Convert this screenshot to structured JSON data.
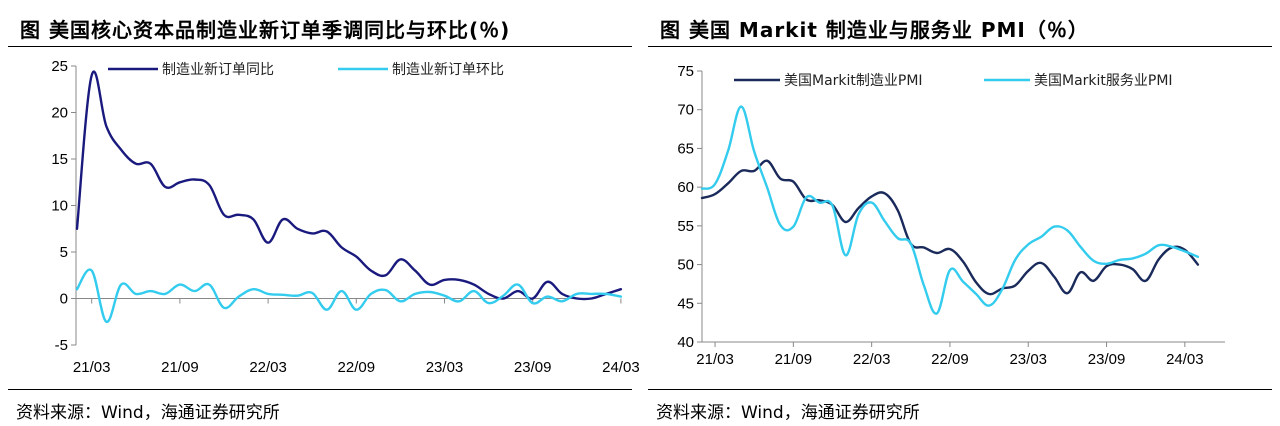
{
  "left": {
    "title": "图   美国核心资本品制造业新订单季调同比与环比(％)",
    "source": "资料来源：Wind，海通证券研究所"
  },
  "right": {
    "title": "图   美国 Markit 制造业与服务业 PMI（％）",
    "source": "资料来源：Wind，海通证券研究所"
  },
  "chart_data": [
    {
      "type": "line",
      "title": "美国核心资本品制造业新订单季调同比与环比(％)",
      "ylim": [
        -5,
        25
      ],
      "yticks": [
        -5,
        0,
        5,
        10,
        15,
        20,
        25
      ],
      "xticks": [
        "21/03",
        "21/09",
        "22/03",
        "22/09",
        "23/03",
        "23/09",
        "24/03"
      ],
      "x": [
        "21/02",
        "21/03",
        "21/04",
        "21/05",
        "21/06",
        "21/07",
        "21/08",
        "21/09",
        "21/10",
        "21/11",
        "21/12",
        "22/01",
        "22/02",
        "22/03",
        "22/04",
        "22/05",
        "22/06",
        "22/07",
        "22/08",
        "22/09",
        "22/10",
        "22/11",
        "22/12",
        "23/01",
        "23/02",
        "23/03",
        "23/04",
        "23/05",
        "23/06",
        "23/07",
        "23/08",
        "23/09",
        "23/10",
        "23/11",
        "23/12",
        "24/01",
        "24/02",
        "24/03"
      ],
      "legend_position": "top",
      "grid": false,
      "series": [
        {
          "name": "制造业新订单同比",
          "color": "#1a1a7e",
          "values": [
            7.5,
            24.0,
            18.5,
            16.0,
            14.5,
            14.5,
            12.0,
            12.5,
            12.8,
            12.2,
            9.0,
            9.0,
            8.5,
            6.0,
            8.5,
            7.5,
            7.0,
            7.2,
            5.5,
            4.5,
            3.0,
            2.5,
            4.2,
            3.0,
            1.5,
            2.0,
            2.0,
            1.5,
            0.5,
            0.0,
            0.8,
            0.0,
            1.8,
            0.5,
            0.0,
            0.0,
            0.5,
            1.0
          ]
        },
        {
          "name": "制造业新订单环比",
          "color": "#33ccee",
          "values": [
            1.0,
            3.0,
            -2.5,
            1.5,
            0.5,
            0.8,
            0.5,
            1.5,
            0.8,
            1.5,
            -1.0,
            0.2,
            1.0,
            0.5,
            0.4,
            0.3,
            0.6,
            -1.2,
            0.8,
            -1.2,
            0.5,
            0.9,
            -0.3,
            0.5,
            0.7,
            0.3,
            -0.3,
            0.8,
            -0.5,
            0.3,
            1.5,
            -0.5,
            0.2,
            -0.3,
            0.5,
            0.5,
            0.5,
            0.2
          ]
        }
      ]
    },
    {
      "type": "line",
      "title": "美国 Markit 制造业与服务业 PMI（％）",
      "ylim": [
        40,
        75
      ],
      "yticks": [
        40,
        45,
        50,
        55,
        60,
        65,
        70,
        75
      ],
      "xticks": [
        "21/03",
        "21/09",
        "22/03",
        "22/09",
        "23/03",
        "23/09",
        "24/03"
      ],
      "x": [
        "21/02",
        "21/03",
        "21/04",
        "21/05",
        "21/06",
        "21/07",
        "21/08",
        "21/09",
        "21/10",
        "21/11",
        "21/12",
        "22/01",
        "22/02",
        "22/03",
        "22/04",
        "22/05",
        "22/06",
        "22/07",
        "22/08",
        "22/09",
        "22/10",
        "22/11",
        "22/12",
        "23/01",
        "23/02",
        "23/03",
        "23/04",
        "23/05",
        "23/06",
        "23/07",
        "23/08",
        "23/09",
        "23/10",
        "23/11",
        "23/12",
        "24/01",
        "24/02",
        "24/03",
        "24/04"
      ],
      "legend_position": "top",
      "grid": false,
      "series": [
        {
          "name": "美国Markit制造业PMI",
          "color": "#1a2a5a",
          "values": [
            58.6,
            59.1,
            60.5,
            62.1,
            62.1,
            63.4,
            61.1,
            60.7,
            58.4,
            58.3,
            57.7,
            55.5,
            57.3,
            58.8,
            59.2,
            57.0,
            52.7,
            52.2,
            51.5,
            52.0,
            50.4,
            47.7,
            46.2,
            46.9,
            47.3,
            49.2,
            50.2,
            48.4,
            46.3,
            49.0,
            47.9,
            49.8,
            50.0,
            49.4,
            47.9,
            50.7,
            52.2,
            51.9,
            50.0
          ]
        },
        {
          "name": "美国Markit服务业PMI",
          "color": "#33ccee",
          "values": [
            59.8,
            60.4,
            64.7,
            70.4,
            64.6,
            59.9,
            55.1,
            54.9,
            58.7,
            58.0,
            57.6,
            51.2,
            56.5,
            58.0,
            55.6,
            53.4,
            52.7,
            47.3,
            43.7,
            49.3,
            47.8,
            46.2,
            44.7,
            46.8,
            50.6,
            52.6,
            53.6,
            54.9,
            54.4,
            52.3,
            50.5,
            50.1,
            50.6,
            50.8,
            51.4,
            52.5,
            52.3,
            51.7,
            51.0
          ]
        }
      ]
    }
  ]
}
